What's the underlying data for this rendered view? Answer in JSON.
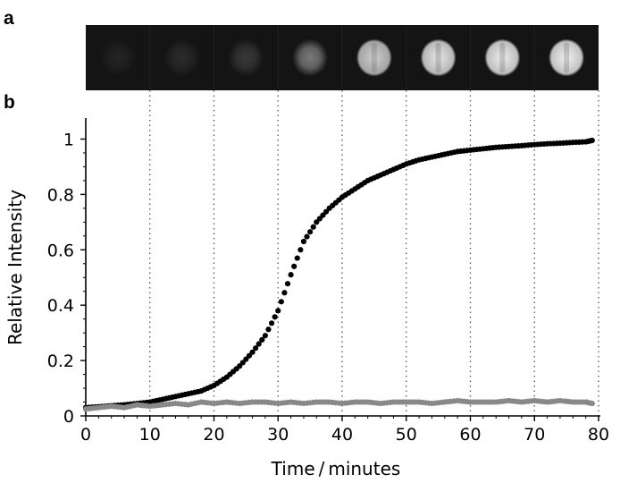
{
  "panel_a": {
    "label": "a",
    "spot_relative_intensity": [
      0.03,
      0.06,
      0.12,
      0.42,
      0.82,
      0.93,
      0.97,
      0.99
    ]
  },
  "chart_data": {
    "type": "scatter",
    "panel_label": "b",
    "xlabel": "Time / minutes",
    "ylabel": "Relative Intensity",
    "xlim": [
      0,
      80
    ],
    "ylim": [
      0,
      1.05
    ],
    "xticks": [
      0,
      10,
      20,
      30,
      40,
      50,
      60,
      70,
      80
    ],
    "yticks": [
      0,
      0.2,
      0.4,
      0.6,
      0.8,
      1
    ],
    "ytick_labels": [
      "0",
      "0.2",
      "0.4",
      "0.6",
      "0.8",
      "1"
    ],
    "vertical_gridlines_dotted": [
      10,
      20,
      30,
      40,
      50,
      60,
      70,
      80
    ],
    "grid": false,
    "legend": "none",
    "series": [
      {
        "color": "#000000",
        "x": [
          0,
          2,
          4,
          6,
          8,
          10,
          12,
          14,
          16,
          18,
          20,
          22,
          24,
          26,
          28,
          30,
          32,
          34,
          36,
          38,
          40,
          42,
          44,
          46,
          48,
          50,
          52,
          54,
          56,
          58,
          60,
          62,
          64,
          66,
          68,
          70,
          72,
          74,
          76,
          78,
          79
        ],
        "y": [
          0.03,
          0.033,
          0.037,
          0.04,
          0.045,
          0.05,
          0.06,
          0.07,
          0.08,
          0.09,
          0.11,
          0.14,
          0.18,
          0.23,
          0.29,
          0.38,
          0.51,
          0.63,
          0.7,
          0.75,
          0.79,
          0.82,
          0.85,
          0.87,
          0.89,
          0.91,
          0.925,
          0.935,
          0.945,
          0.955,
          0.96,
          0.965,
          0.97,
          0.973,
          0.976,
          0.98,
          0.983,
          0.985,
          0.988,
          0.99,
          0.995
        ]
      },
      {
        "color": "#888888",
        "x": [
          0,
          2,
          4,
          6,
          8,
          10,
          12,
          14,
          16,
          18,
          20,
          22,
          24,
          26,
          28,
          30,
          32,
          34,
          36,
          38,
          40,
          42,
          44,
          46,
          48,
          50,
          52,
          54,
          56,
          58,
          60,
          62,
          64,
          66,
          68,
          70,
          72,
          74,
          76,
          78,
          79
        ],
        "y": [
          0.025,
          0.03,
          0.035,
          0.03,
          0.04,
          0.035,
          0.04,
          0.045,
          0.04,
          0.05,
          0.045,
          0.05,
          0.045,
          0.05,
          0.05,
          0.045,
          0.05,
          0.045,
          0.05,
          0.05,
          0.045,
          0.05,
          0.05,
          0.045,
          0.05,
          0.05,
          0.05,
          0.045,
          0.05,
          0.055,
          0.05,
          0.05,
          0.05,
          0.055,
          0.05,
          0.055,
          0.05,
          0.055,
          0.05,
          0.05,
          0.045
        ]
      }
    ]
  }
}
